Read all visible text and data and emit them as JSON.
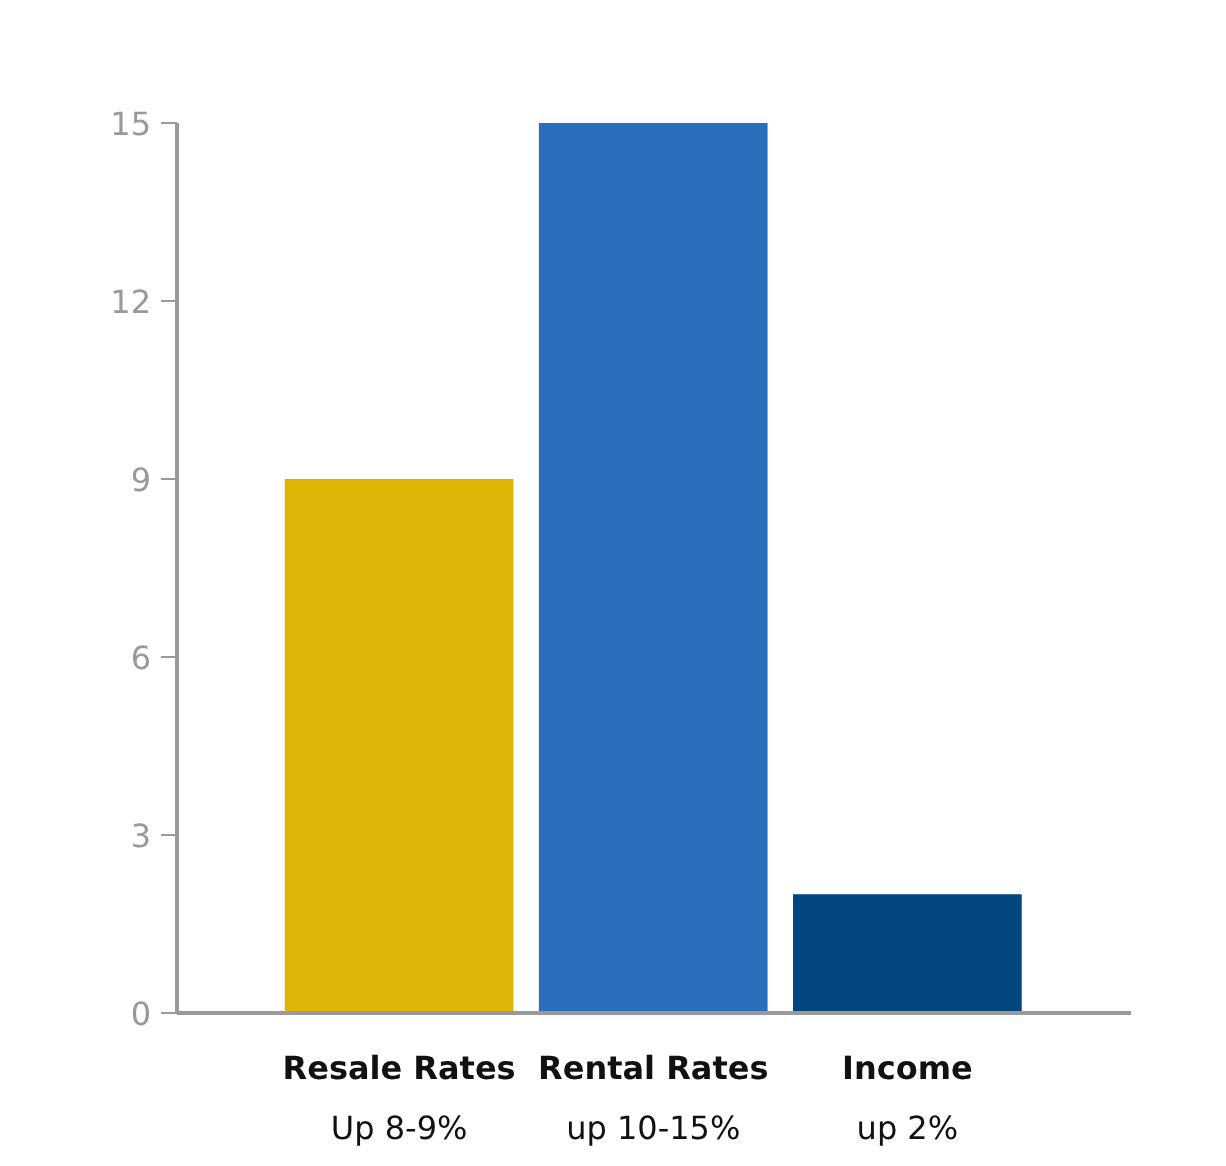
{
  "chart_data": {
    "type": "bar",
    "categories": [
      "Resale Rates\nUp 8-9%",
      "Rental Rates\nup 10-15%",
      "Income\nup 2%"
    ],
    "values": [
      9,
      15,
      2
    ],
    "colors": [
      "#deb406",
      "#2a6ebb",
      "#02467f"
    ],
    "ylim": [
      0,
      15
    ],
    "yticks": [
      0,
      3,
      6,
      9,
      12,
      15
    ],
    "grid": false
  }
}
